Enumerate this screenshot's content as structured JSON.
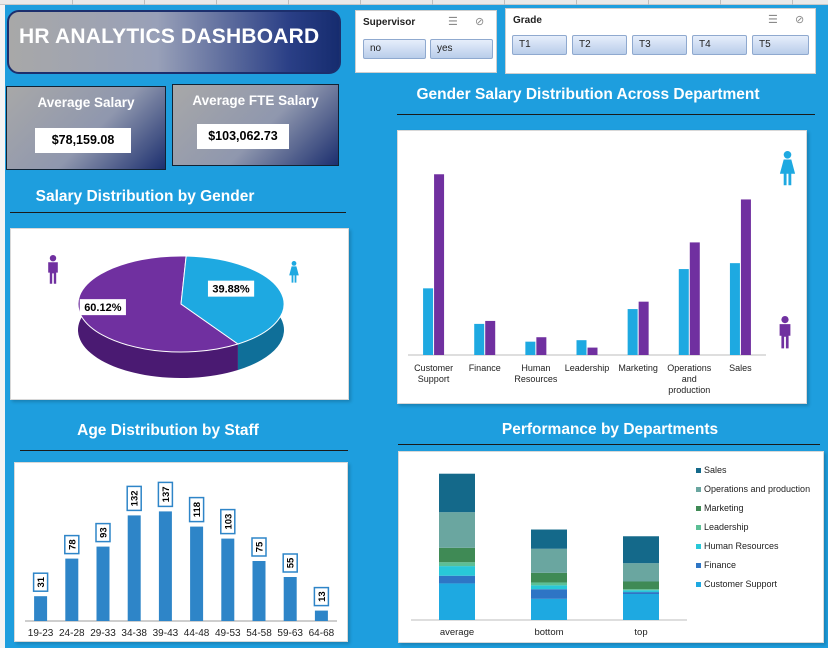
{
  "title": "HR ANALYTICS DASHBOARD",
  "kpis": {
    "avg_salary_label": "Average Salary",
    "avg_salary_value": "$78,159.08",
    "avg_fte_label": "Average FTE Salary",
    "avg_fte_value": "$103,062.73"
  },
  "slicers": {
    "supervisor": {
      "title": "Supervisor",
      "options": [
        "no",
        "yes"
      ]
    },
    "grade": {
      "title": "Grade",
      "options": [
        "T1",
        "T2",
        "T3",
        "T4",
        "T5"
      ]
    }
  },
  "section_titles": {
    "gender_pie": "Salary Distribution by Gender",
    "dept_gender": "Gender Salary Distribution Across Department",
    "age": "Age Distribution by Staff",
    "performance": "Performance by Departments"
  },
  "colors": {
    "female": "#1ea9e1",
    "male": "#7030a0",
    "age_bar": "#2e85c8",
    "background": "#1e9ede"
  },
  "chart_data": [
    {
      "id": "gender_pie",
      "type": "pie",
      "title": "Salary Distribution by Gender",
      "labels": [
        "female",
        "male"
      ],
      "values": [
        39.88,
        60.12
      ],
      "data_labels": [
        "39.88%",
        "60.12%"
      ],
      "colors": [
        "#1ea9e1",
        "#7030a0"
      ],
      "legend_icons": [
        "male-figure-icon",
        "female-figure-icon"
      ]
    },
    {
      "id": "dept_gender",
      "type": "bar",
      "title": "Gender Salary Distribution Across Department",
      "categories": [
        "Customer Support",
        "Finance",
        "Human Resources",
        "Leadership",
        "Marketing",
        "Operations and production",
        "Sales"
      ],
      "series": [
        {
          "values": [
            45,
            21,
            9,
            10,
            31,
            58,
            62
          ],
          "color": "#1ea9e1"
        },
        {
          "values": [
            122,
            23,
            12,
            5,
            36,
            76,
            105
          ],
          "color": "#7030a0"
        }
      ],
      "ylim": [
        0,
        135
      ],
      "legend_icons": [
        "female-figure-icon",
        "male-figure-icon"
      ]
    },
    {
      "id": "age",
      "type": "bar",
      "title": "Age Distribution by Staff",
      "categories": [
        "19-23",
        "24-28",
        "29-33",
        "34-38",
        "39-43",
        "44-48",
        "49-53",
        "54-58",
        "59-63",
        "64-68"
      ],
      "values": [
        31,
        78,
        93,
        132,
        137,
        118,
        103,
        75,
        55,
        13
      ],
      "data_labels": [
        "31",
        "78",
        "93",
        "132",
        "137",
        "118",
        "103",
        "75",
        "55",
        "13"
      ],
      "ylim": [
        0,
        160
      ]
    },
    {
      "id": "performance",
      "type": "bar",
      "stacked": true,
      "title": "Performance by Departments",
      "categories": [
        "average",
        "bottom",
        "top"
      ],
      "series": [
        {
          "name": "Customer Support",
          "values": [
            38,
            22,
            27
          ],
          "color": "#1ea9e1"
        },
        {
          "name": "Finance",
          "values": [
            8,
            10,
            2
          ],
          "color": "#2e75c5"
        },
        {
          "name": "Human Resources",
          "values": [
            10,
            4,
            2
          ],
          "color": "#28c8d8"
        },
        {
          "name": "Leadership",
          "values": [
            4,
            3,
            1
          ],
          "color": "#5cbf95"
        },
        {
          "name": "Marketing",
          "values": [
            15,
            10,
            8
          ],
          "color": "#3f8a55"
        },
        {
          "name": "Operations and production",
          "values": [
            37,
            25,
            19
          ],
          "color": "#6aa6a0"
        },
        {
          "name": "Sales",
          "values": [
            40,
            20,
            28
          ],
          "color": "#14698a"
        }
      ],
      "legend_order": [
        "Sales",
        "Operations and production",
        "Marketing",
        "Leadership",
        "Human Resources",
        "Finance",
        "Customer Support"
      ],
      "ylim": [
        0,
        160
      ]
    }
  ]
}
